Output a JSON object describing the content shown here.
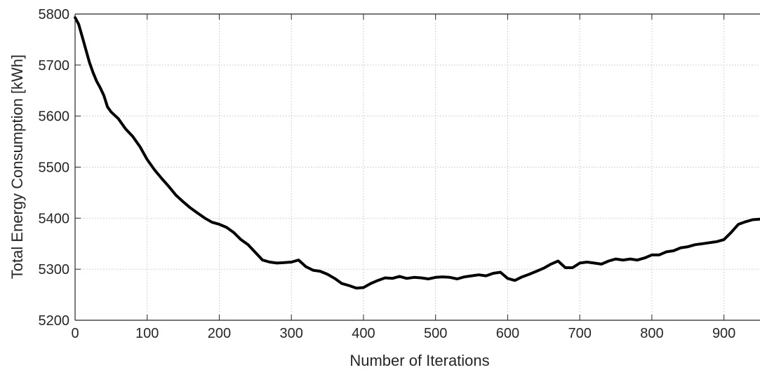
{
  "chart_data": {
    "type": "line",
    "title": "",
    "xlabel": "Number of Iterations",
    "ylabel": "Total Energy Consumption [kWh]",
    "xlim": [
      0,
      950
    ],
    "ylim": [
      5200,
      5800
    ],
    "xticks": [
      0,
      100,
      200,
      300,
      400,
      500,
      600,
      700,
      800,
      900
    ],
    "yticks": [
      5200,
      5300,
      5400,
      5500,
      5600,
      5700,
      5800
    ],
    "xtick_labels": [
      "0",
      "100",
      "200",
      "300",
      "400",
      "500",
      "600",
      "700",
      "800",
      "900"
    ],
    "ytick_labels": [
      "5200",
      "5300",
      "5400",
      "5500",
      "5600",
      "5700",
      "5800"
    ],
    "grid": true,
    "grid_style": "dotted",
    "legend": "none",
    "line_color": "#000000",
    "series": [
      {
        "x": [
          0,
          5,
          10,
          15,
          20,
          25,
          30,
          35,
          40,
          45,
          50,
          60,
          70,
          80,
          90,
          100,
          110,
          120,
          130,
          140,
          150,
          160,
          170,
          180,
          190,
          200,
          210,
          220,
          230,
          240,
          250,
          260,
          270,
          280,
          290,
          300,
          310,
          320,
          330,
          340,
          350,
          360,
          370,
          380,
          390,
          400,
          410,
          420,
          430,
          440,
          450,
          460,
          470,
          480,
          490,
          500,
          510,
          520,
          530,
          540,
          550,
          560,
          570,
          580,
          590,
          600,
          610,
          620,
          630,
          640,
          650,
          660,
          670,
          680,
          690,
          700,
          710,
          720,
          730,
          740,
          750,
          760,
          770,
          780,
          790,
          800,
          810,
          820,
          830,
          840,
          850,
          860,
          870,
          880,
          890,
          900,
          910,
          920,
          930,
          940,
          950
        ],
        "values": [
          5793,
          5780,
          5755,
          5730,
          5705,
          5685,
          5668,
          5655,
          5640,
          5618,
          5608,
          5595,
          5575,
          5560,
          5540,
          5515,
          5495,
          5478,
          5462,
          5445,
          5432,
          5420,
          5410,
          5400,
          5392,
          5388,
          5382,
          5372,
          5358,
          5348,
          5333,
          5318,
          5314,
          5312,
          5313,
          5314,
          5318,
          5305,
          5298,
          5296,
          5290,
          5282,
          5272,
          5268,
          5263,
          5264,
          5272,
          5278,
          5283,
          5282,
          5286,
          5282,
          5284,
          5283,
          5281,
          5284,
          5285,
          5284,
          5281,
          5285,
          5287,
          5289,
          5287,
          5292,
          5294,
          5282,
          5278,
          5285,
          5290,
          5296,
          5302,
          5310,
          5316,
          5303,
          5303,
          5312,
          5314,
          5312,
          5310,
          5316,
          5320,
          5318,
          5320,
          5318,
          5322,
          5328,
          5328,
          5334,
          5336,
          5342,
          5344,
          5348,
          5350,
          5352,
          5354,
          5358,
          5372,
          5388,
          5393,
          5397,
          5398
        ]
      }
    ]
  }
}
